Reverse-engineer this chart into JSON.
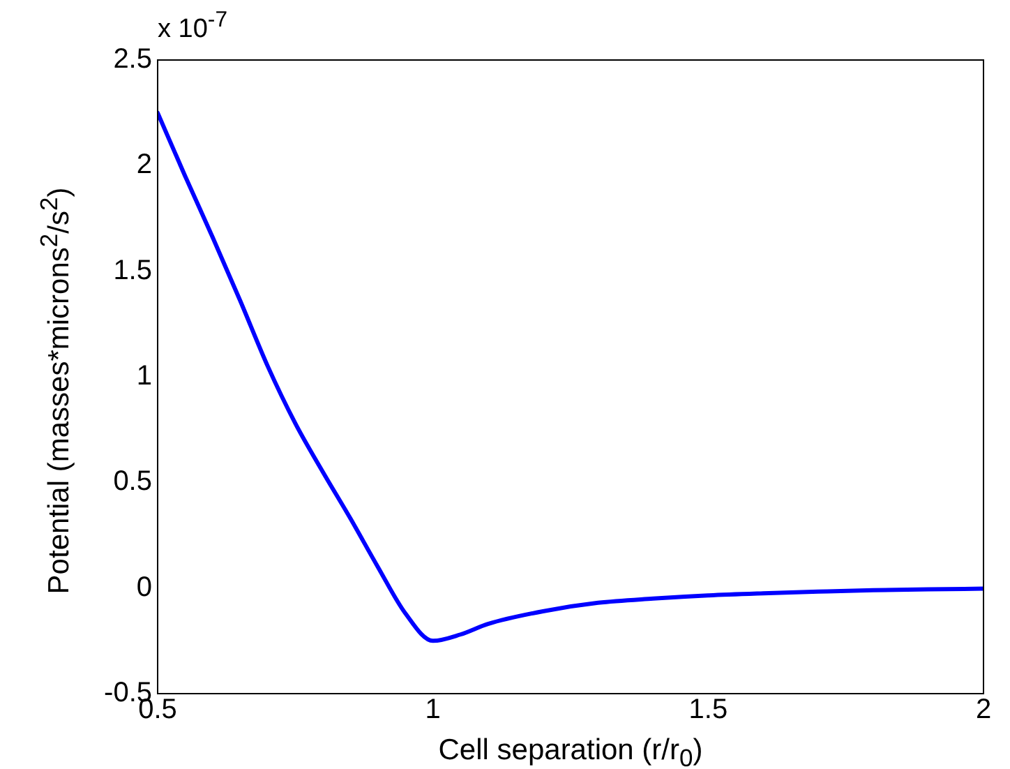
{
  "chart_data": {
    "type": "line",
    "xlabel": "Cell separation (r/r$_{0}$)",
    "ylabel": "Potential (masses*microns$^{2}$/s$^{2}$)",
    "annotations": [
      "x 10$^{-7}$"
    ],
    "x": [
      0.5,
      0.55,
      0.6,
      0.65,
      0.7,
      0.75,
      0.8,
      0.85,
      0.9,
      0.95,
      1.0,
      1.05,
      1.1,
      1.2,
      1.3,
      1.4,
      1.5,
      1.6,
      1.7,
      1.8,
      1.9,
      2.0
    ],
    "series": [
      {
        "color": "#0000ff",
        "values": [
          2.25,
          1.95,
          1.66,
          1.36,
          1.05,
          0.78,
          0.55,
          0.33,
          0.1,
          -0.12,
          -0.25,
          -0.22,
          -0.17,
          -0.11,
          -0.07,
          -0.05,
          -0.035,
          -0.025,
          -0.017,
          -0.01,
          -0.006,
          -0.003
        ]
      }
    ],
    "xlim": [
      0.5,
      2
    ],
    "xticks": [
      0.5,
      1,
      1.5,
      2
    ],
    "ylim": [
      -0.5,
      2.5
    ],
    "yticks": [
      -0.5,
      0,
      0.5,
      1,
      1.5,
      2,
      2.5
    ],
    "grid": false,
    "legend": false,
    "marker": "none",
    "line_style": "solid"
  }
}
